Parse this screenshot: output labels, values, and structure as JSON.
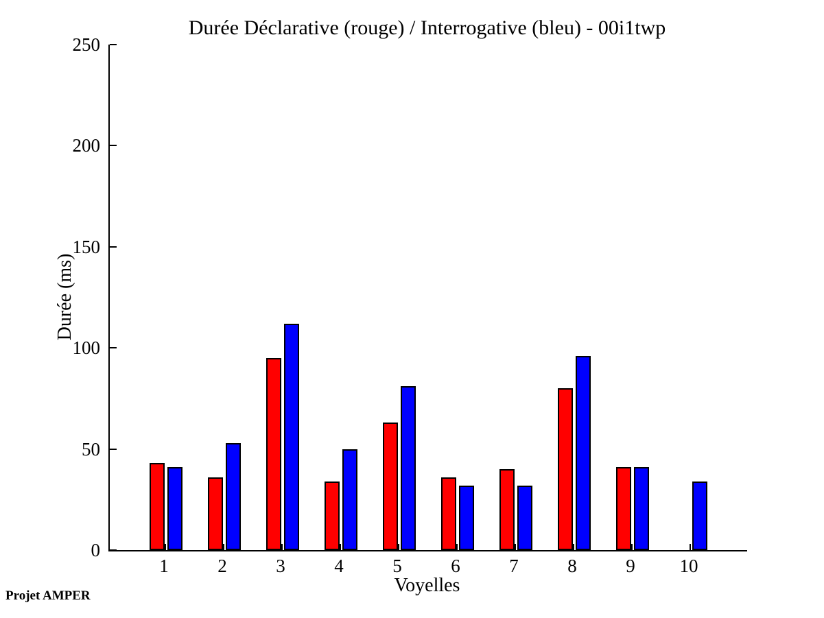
{
  "title": "Durée Déclarative (rouge) / Interrogative (bleu) - 00i1twp",
  "footer": "Projet AMPER",
  "chart_data": {
    "type": "bar",
    "title": "Durée Déclarative (rouge) / Interrogative (bleu) - 00i1twp",
    "xlabel": "Voyelles",
    "ylabel": "Durée (ms)",
    "categories": [
      "1",
      "2",
      "3",
      "4",
      "5",
      "6",
      "7",
      "8",
      "9",
      "10"
    ],
    "series": [
      {
        "name": "Déclarative",
        "title_tag": "rouge",
        "color": "#ff0000",
        "values": [
          43,
          36,
          95,
          34,
          63,
          36,
          40,
          80,
          41,
          0
        ]
      },
      {
        "name": "Interrogative",
        "title_tag": "bleu",
        "color": "#0000ff",
        "values": [
          41,
          53,
          112,
          50,
          81,
          32,
          32,
          96,
          41,
          34
        ]
      }
    ],
    "ylim": [
      0,
      250
    ],
    "yticks": [
      0,
      50,
      100,
      150,
      200,
      250
    ],
    "grid": false,
    "legend_position": "none (encoded in title)"
  }
}
